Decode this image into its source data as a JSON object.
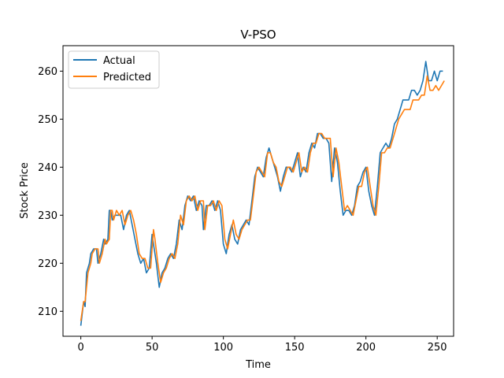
{
  "chart_data": {
    "type": "line",
    "title": "V-PSO",
    "xlabel": "Time",
    "ylabel": "Stock Price",
    "xlim": [
      -12.5,
      261.5
    ],
    "ylim": [
      204.8,
      265.3
    ],
    "xticks": [
      0,
      50,
      100,
      150,
      200,
      250
    ],
    "yticks": [
      210,
      220,
      230,
      240,
      250,
      260
    ],
    "grid": false,
    "legend": "top-left",
    "series": [
      {
        "name": "Actual",
        "color": "#1f77b4",
        "points": [
          [
            0,
            207
          ],
          [
            2,
            212
          ],
          [
            3,
            211
          ],
          [
            4,
            218
          ],
          [
            6,
            220
          ],
          [
            7,
            222
          ],
          [
            9,
            223
          ],
          [
            11,
            223
          ],
          [
            12,
            220
          ],
          [
            14,
            222
          ],
          [
            16,
            225
          ],
          [
            17,
            224
          ],
          [
            19,
            225
          ],
          [
            20,
            231
          ],
          [
            21,
            231
          ],
          [
            22,
            229
          ],
          [
            24,
            230
          ],
          [
            26,
            230
          ],
          [
            28,
            230
          ],
          [
            30,
            227
          ],
          [
            32,
            230
          ],
          [
            34,
            231
          ],
          [
            36,
            228
          ],
          [
            38,
            225
          ],
          [
            40,
            222
          ],
          [
            42,
            220
          ],
          [
            44,
            221
          ],
          [
            46,
            218
          ],
          [
            48,
            219
          ],
          [
            50,
            226
          ],
          [
            51,
            224
          ],
          [
            53,
            220
          ],
          [
            55,
            215
          ],
          [
            57,
            218
          ],
          [
            59,
            219
          ],
          [
            61,
            221
          ],
          [
            63,
            222
          ],
          [
            65,
            221
          ],
          [
            67,
            224
          ],
          [
            69,
            229
          ],
          [
            71,
            227
          ],
          [
            73,
            232
          ],
          [
            75,
            234
          ],
          [
            77,
            233
          ],
          [
            79,
            234
          ],
          [
            81,
            231
          ],
          [
            83,
            233
          ],
          [
            85,
            232
          ],
          [
            86,
            227
          ],
          [
            88,
            232
          ],
          [
            90,
            232
          ],
          [
            92,
            233
          ],
          [
            94,
            231
          ],
          [
            96,
            233
          ],
          [
            98,
            231
          ],
          [
            100,
            224
          ],
          [
            102,
            222
          ],
          [
            104,
            226
          ],
          [
            106,
            228
          ],
          [
            108,
            225
          ],
          [
            110,
            224
          ],
          [
            112,
            227
          ],
          [
            114,
            228
          ],
          [
            116,
            229
          ],
          [
            118,
            228
          ],
          [
            120,
            233
          ],
          [
            122,
            238
          ],
          [
            124,
            240
          ],
          [
            126,
            239
          ],
          [
            128,
            238
          ],
          [
            130,
            242
          ],
          [
            132,
            244
          ],
          [
            134,
            242
          ],
          [
            136,
            240
          ],
          [
            138,
            238
          ],
          [
            140,
            235
          ],
          [
            142,
            238
          ],
          [
            144,
            240
          ],
          [
            146,
            240
          ],
          [
            148,
            239
          ],
          [
            150,
            241
          ],
          [
            152,
            243
          ],
          [
            154,
            238
          ],
          [
            156,
            240
          ],
          [
            158,
            239
          ],
          [
            160,
            243
          ],
          [
            162,
            245
          ],
          [
            164,
            244
          ],
          [
            166,
            247
          ],
          [
            168,
            247
          ],
          [
            170,
            246
          ],
          [
            172,
            246
          ],
          [
            174,
            245
          ],
          [
            176,
            237
          ],
          [
            178,
            244
          ],
          [
            180,
            241
          ],
          [
            182,
            235
          ],
          [
            184,
            230
          ],
          [
            186,
            231
          ],
          [
            188,
            231
          ],
          [
            190,
            230
          ],
          [
            192,
            232
          ],
          [
            194,
            236
          ],
          [
            196,
            237
          ],
          [
            198,
            239
          ],
          [
            200,
            240
          ],
          [
            202,
            235
          ],
          [
            204,
            232
          ],
          [
            206,
            230
          ],
          [
            208,
            236
          ],
          [
            210,
            243
          ],
          [
            212,
            244
          ],
          [
            214,
            245
          ],
          [
            216,
            244
          ],
          [
            218,
            246
          ],
          [
            220,
            249
          ],
          [
            222,
            250
          ],
          [
            224,
            252
          ],
          [
            226,
            254
          ],
          [
            228,
            254
          ],
          [
            230,
            254
          ],
          [
            232,
            256
          ],
          [
            234,
            256
          ],
          [
            236,
            255
          ],
          [
            238,
            256
          ],
          [
            240,
            258
          ],
          [
            242,
            262
          ],
          [
            244,
            258
          ],
          [
            246,
            258
          ],
          [
            248,
            260
          ],
          [
            250,
            258
          ],
          [
            252,
            260
          ],
          [
            254,
            260
          ]
        ]
      },
      {
        "name": "Predicted",
        "color": "#ff7f0e",
        "points": [
          [
            0,
            208
          ],
          [
            2,
            212
          ],
          [
            3,
            212
          ],
          [
            5,
            218
          ],
          [
            7,
            220
          ],
          [
            8,
            222
          ],
          [
            10,
            223
          ],
          [
            12,
            223
          ],
          [
            13,
            220
          ],
          [
            15,
            222
          ],
          [
            17,
            225
          ],
          [
            18,
            224
          ],
          [
            20,
            225
          ],
          [
            21,
            231
          ],
          [
            22,
            231
          ],
          [
            23,
            229
          ],
          [
            25,
            231
          ],
          [
            27,
            230
          ],
          [
            29,
            231
          ],
          [
            31,
            228
          ],
          [
            33,
            230
          ],
          [
            35,
            231
          ],
          [
            37,
            229
          ],
          [
            39,
            226
          ],
          [
            41,
            222
          ],
          [
            43,
            221
          ],
          [
            45,
            221
          ],
          [
            47,
            219
          ],
          [
            49,
            219
          ],
          [
            51,
            227
          ],
          [
            52,
            225
          ],
          [
            54,
            220
          ],
          [
            56,
            216
          ],
          [
            58,
            218
          ],
          [
            60,
            219
          ],
          [
            62,
            221
          ],
          [
            64,
            222
          ],
          [
            66,
            221
          ],
          [
            68,
            224
          ],
          [
            70,
            230
          ],
          [
            72,
            228
          ],
          [
            74,
            233
          ],
          [
            76,
            234
          ],
          [
            78,
            233
          ],
          [
            80,
            234
          ],
          [
            82,
            231
          ],
          [
            84,
            233
          ],
          [
            86,
            233
          ],
          [
            87,
            227
          ],
          [
            89,
            232
          ],
          [
            91,
            232
          ],
          [
            93,
            233
          ],
          [
            95,
            231
          ],
          [
            97,
            233
          ],
          [
            99,
            232
          ],
          [
            101,
            225
          ],
          [
            103,
            223
          ],
          [
            105,
            226
          ],
          [
            107,
            229
          ],
          [
            109,
            226
          ],
          [
            111,
            225
          ],
          [
            113,
            227
          ],
          [
            115,
            228
          ],
          [
            117,
            229
          ],
          [
            119,
            229
          ],
          [
            121,
            234
          ],
          [
            123,
            239
          ],
          [
            125,
            240
          ],
          [
            127,
            239
          ],
          [
            129,
            238
          ],
          [
            131,
            243
          ],
          [
            133,
            243
          ],
          [
            135,
            241
          ],
          [
            137,
            240
          ],
          [
            139,
            237
          ],
          [
            141,
            236
          ],
          [
            143,
            238
          ],
          [
            145,
            240
          ],
          [
            147,
            240
          ],
          [
            149,
            239
          ],
          [
            151,
            241
          ],
          [
            153,
            243
          ],
          [
            155,
            239
          ],
          [
            157,
            240
          ],
          [
            159,
            239
          ],
          [
            161,
            243
          ],
          [
            163,
            245
          ],
          [
            165,
            245
          ],
          [
            167,
            247
          ],
          [
            169,
            247
          ],
          [
            171,
            246
          ],
          [
            173,
            246
          ],
          [
            175,
            246
          ],
          [
            177,
            238
          ],
          [
            179,
            244
          ],
          [
            181,
            241
          ],
          [
            183,
            236
          ],
          [
            185,
            231
          ],
          [
            187,
            232
          ],
          [
            189,
            231
          ],
          [
            191,
            230
          ],
          [
            193,
            233
          ],
          [
            195,
            236
          ],
          [
            197,
            236
          ],
          [
            199,
            239
          ],
          [
            201,
            240
          ],
          [
            203,
            236
          ],
          [
            205,
            232
          ],
          [
            207,
            230
          ],
          [
            209,
            236
          ],
          [
            211,
            243
          ],
          [
            213,
            243
          ],
          [
            215,
            244
          ],
          [
            217,
            244
          ],
          [
            219,
            246
          ],
          [
            221,
            248
          ],
          [
            223,
            250
          ],
          [
            225,
            251
          ],
          [
            227,
            252
          ],
          [
            229,
            252
          ],
          [
            231,
            252
          ],
          [
            233,
            254
          ],
          [
            235,
            254
          ],
          [
            237,
            254
          ],
          [
            239,
            255
          ],
          [
            241,
            255
          ],
          [
            243,
            259
          ],
          [
            245,
            256
          ],
          [
            247,
            256
          ],
          [
            249,
            257
          ],
          [
            251,
            256
          ],
          [
            253,
            257
          ],
          [
            255,
            258
          ]
        ]
      }
    ]
  }
}
